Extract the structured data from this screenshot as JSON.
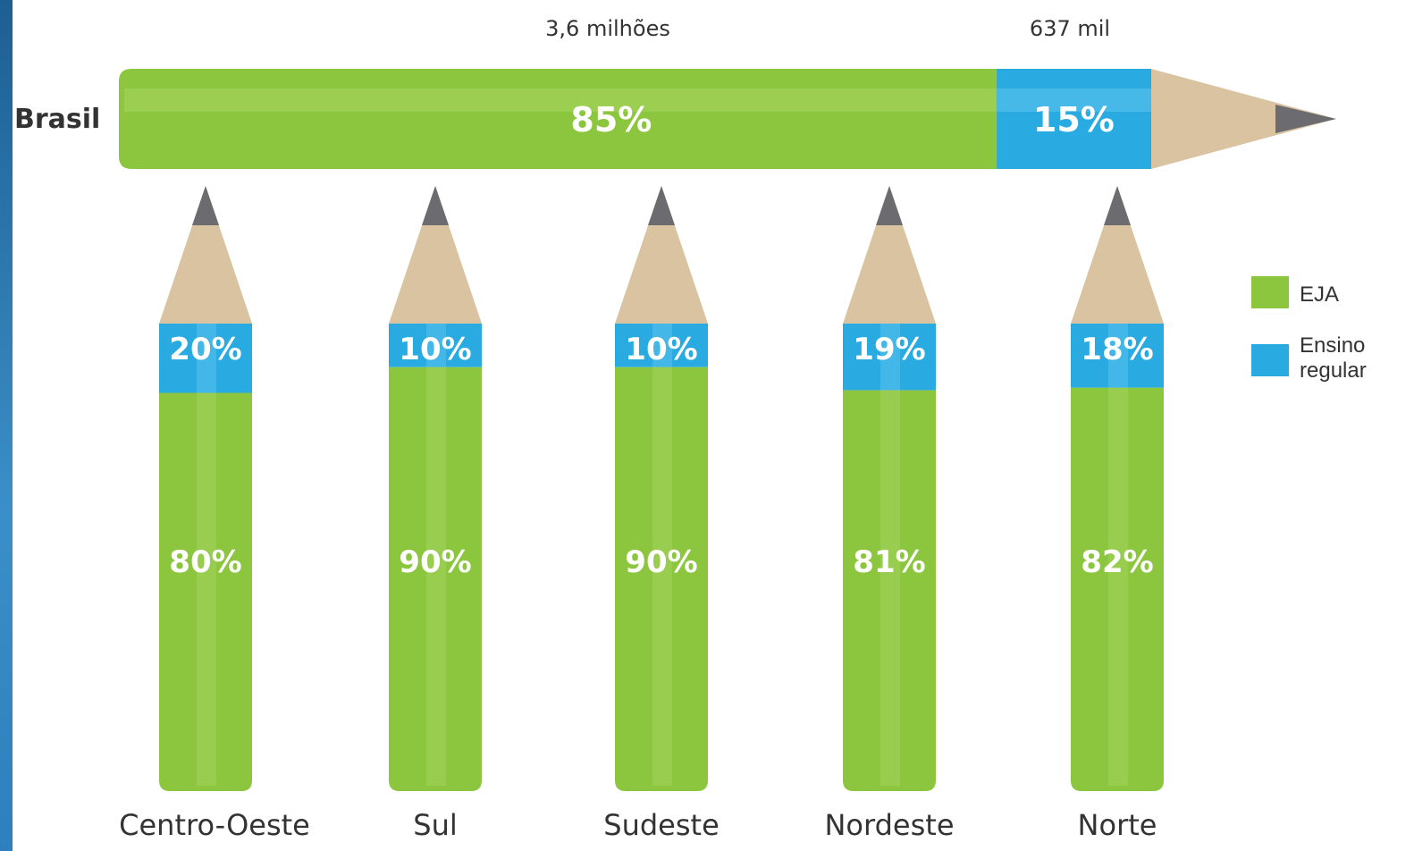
{
  "chart_data": {
    "type": "bar",
    "orientation": "stacked-100-percent",
    "legend": {
      "placement": "right",
      "entries": [
        {
          "key": "eja",
          "label": "EJA",
          "color": "#8cc63f"
        },
        {
          "key": "regular",
          "label_lines": [
            "Ensino",
            "regular"
          ],
          "color": "#29abe2"
        }
      ]
    },
    "brasil": {
      "label": "Brasil",
      "eja_value": 85,
      "regular_value": 15,
      "eja_text": "85%",
      "regular_text": "15%",
      "eja_total": "3,6 milhões",
      "regular_total": "637 mil"
    },
    "categories": [
      "Centro-Oeste",
      "Sul",
      "Sudeste",
      "Nordeste",
      "Norte"
    ],
    "series": [
      {
        "name": "EJA",
        "key": "eja",
        "values": [
          80,
          90,
          90,
          81,
          82
        ],
        "labels": [
          "80%",
          "90%",
          "90%",
          "81%",
          "82%"
        ]
      },
      {
        "name": "Ensino regular",
        "key": "regular",
        "values": [
          20,
          10,
          10,
          19,
          18
        ],
        "labels": [
          "20%",
          "10%",
          "10%",
          "19%",
          "18%"
        ]
      }
    ],
    "colors": {
      "eja": "#8cc63f",
      "eja_light": "#a6d45f",
      "regular": "#29abe2",
      "regular_light": "#5cc3ee",
      "wood": "#d9c3a0",
      "lead": "#6b6b70",
      "white_text": "#ffffff",
      "dark_text": "#333333"
    }
  }
}
